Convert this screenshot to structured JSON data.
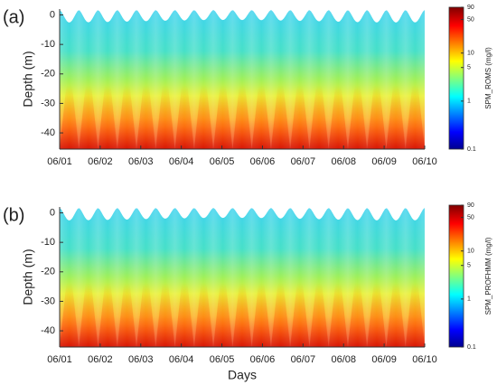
{
  "chart_data": [
    {
      "type": "heatmap",
      "panel_label": "(a)",
      "ylabel": "Depth (m)",
      "categories": [
        "06/01",
        "06/02",
        "06/03",
        "06/04",
        "06/05",
        "06/06",
        "06/07",
        "06/08",
        "06/09",
        "06/10"
      ],
      "ylim": [
        -45.5,
        2
      ],
      "yticks": [
        0,
        -10,
        -20,
        -30,
        -40
      ],
      "colorbar": {
        "label": "SPM_ROMS (mg/l)",
        "scale": "log",
        "lim": [
          0.1,
          90
        ],
        "ticks": [
          0.1,
          1,
          5,
          10,
          50,
          90
        ]
      }
    },
    {
      "type": "heatmap",
      "panel_label": "(b)",
      "ylabel": "Depth (m)",
      "xlabel": "Days",
      "categories": [
        "06/01",
        "06/02",
        "06/03",
        "06/04",
        "06/05",
        "06/06",
        "06/07",
        "06/08",
        "06/09",
        "06/10"
      ],
      "ylim": [
        -45.5,
        2
      ],
      "yticks": [
        0,
        -10,
        -20,
        -30,
        -40
      ],
      "colorbar": {
        "label": "SPM_PROFHMM (mg/l)",
        "scale": "log",
        "lim": [
          0.1,
          90
        ],
        "ticks": [
          0.1,
          1,
          5,
          10,
          50,
          90
        ]
      }
    }
  ]
}
